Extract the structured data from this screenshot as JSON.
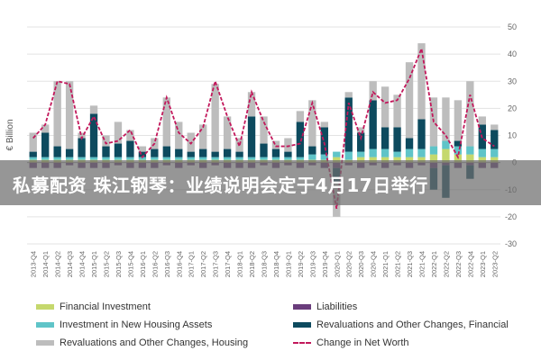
{
  "banner": {
    "text": "私募配资 珠江钢琴：业绩说明会定于4月17日举行"
  },
  "chart_data": {
    "type": "bar",
    "ylabel": "€ Billion",
    "ylim": [
      -30,
      50
    ],
    "yticks": [
      -30,
      -20,
      -10,
      0,
      10,
      20,
      30,
      40,
      50
    ],
    "categories": [
      "2013-Q4",
      "2014-Q1",
      "2014-Q2",
      "2014-Q3",
      "2014-Q4",
      "2015-Q1",
      "2015-Q2",
      "2015-Q3",
      "2015-Q4",
      "2016-Q1",
      "2016-Q2",
      "2016-Q3",
      "2016-Q4",
      "2017-Q1",
      "2017-Q2",
      "2017-Q3",
      "2017-Q4",
      "2018-Q1",
      "2018-Q2",
      "2018-Q3",
      "2018-Q4",
      "2019-Q1",
      "2019-Q2",
      "2019-Q3",
      "2019-Q4",
      "2020-Q1",
      "2020-Q2",
      "2020-Q3",
      "2020-Q4",
      "2021-Q1",
      "2021-Q2",
      "2021-Q3",
      "2021-Q4",
      "2022-Q1",
      "2022-Q2",
      "2022-Q3",
      "2022-Q4",
      "2023-Q1",
      "2023-Q2"
    ],
    "series": [
      {
        "name": "Financial Investment",
        "color": "#c5d86d",
        "values": [
          1,
          1,
          1,
          1,
          1,
          1,
          1,
          1,
          1,
          1,
          1,
          1,
          1,
          1,
          1,
          1,
          1,
          1,
          1,
          1,
          1,
          1,
          1,
          1,
          1,
          2,
          1,
          2,
          2,
          2,
          2,
          2,
          2,
          3,
          5,
          3,
          3,
          2,
          2
        ]
      },
      {
        "name": "Liabilities",
        "color": "#6a3d7c",
        "values": [
          -2,
          -2,
          -2,
          -1,
          -2,
          -2,
          -2,
          -1,
          -2,
          -2,
          -2,
          -1,
          -2,
          -1,
          -2,
          -1,
          -2,
          -2,
          -2,
          -1,
          -2,
          -1,
          -2,
          -1,
          -2,
          -2,
          -1,
          -2,
          -1,
          -2,
          -1,
          -2,
          -1,
          -2,
          -1,
          -2,
          -1,
          -2,
          -2
        ]
      },
      {
        "name": "Investment in New Housing Assets",
        "color": "#5fc4c8",
        "values": [
          1,
          1,
          1,
          1,
          1,
          1,
          1,
          1,
          1,
          1,
          1,
          1,
          1,
          1,
          1,
          1,
          1,
          1,
          1,
          1,
          1,
          1,
          1,
          2,
          2,
          2,
          3,
          2,
          3,
          3,
          2,
          3,
          3,
          3,
          3,
          3,
          3,
          3,
          3
        ]
      },
      {
        "name": "Revaluations and Other Changes, Financial",
        "color": "#0d4a5e",
        "values": [
          2,
          9,
          4,
          3,
          7,
          16,
          4,
          5,
          6,
          2,
          3,
          4,
          3,
          2,
          3,
          2,
          3,
          2,
          15,
          5,
          3,
          2,
          13,
          3,
          10,
          -5,
          20,
          7,
          18,
          8,
          9,
          4,
          11,
          -8,
          -12,
          2,
          -5,
          9,
          7
        ]
      },
      {
        "name": "Revaluations and Other Changes, Housing",
        "color": "#bdbdbd",
        "values": [
          7,
          3,
          24,
          25,
          2,
          3,
          4,
          8,
          4,
          2,
          4,
          18,
          10,
          7,
          9,
          25,
          12,
          5,
          9,
          10,
          3,
          5,
          4,
          17,
          2,
          -13,
          2,
          2,
          7,
          15,
          12,
          28,
          28,
          18,
          16,
          15,
          24,
          3,
          2
        ]
      },
      {
        "name": "Change in Net Worth",
        "color": "#c2185b",
        "line": true,
        "values": [
          9,
          14,
          30,
          29,
          9,
          17,
          7,
          8,
          12,
          2,
          7,
          24,
          11,
          7,
          13,
          30,
          17,
          6,
          26,
          15,
          6,
          6,
          7,
          22,
          7,
          -17,
          22,
          9,
          26,
          22,
          23,
          31,
          42,
          15,
          10,
          2,
          25,
          9,
          6
        ]
      }
    ],
    "legend": "bottom",
    "grid": true
  }
}
